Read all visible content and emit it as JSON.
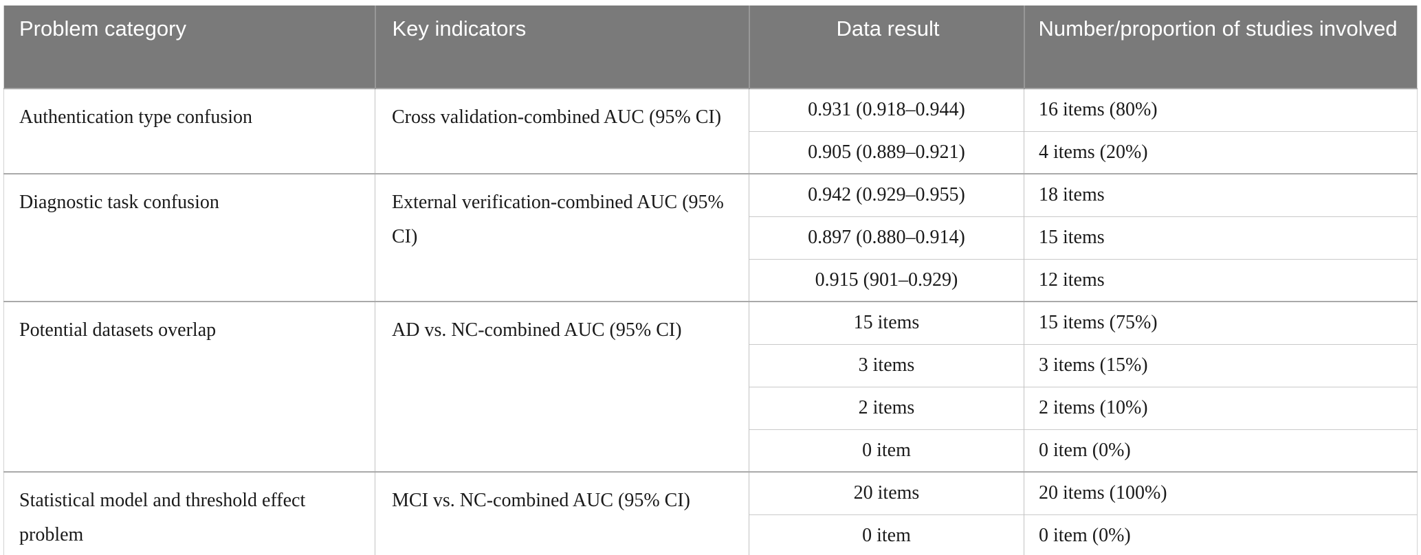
{
  "table": {
    "columns": [
      "Problem category",
      "Key indicators",
      "Data result",
      "Number/proportion of studies involved"
    ],
    "groups": [
      {
        "category": "Authentication type confusion",
        "indicator": "Cross validation-combined AUC (95% CI)",
        "rows": [
          {
            "result": "0.931 (0.918–0.944)",
            "studies": "16 items (80%)"
          },
          {
            "result": "0.905 (0.889–0.921)",
            "studies": "4 items (20%)"
          }
        ]
      },
      {
        "category": "Diagnostic task confusion",
        "indicator": "External verification-combined AUC (95% CI)",
        "rows": [
          {
            "result": "0.942 (0.929–0.955)",
            "studies": "18 items"
          },
          {
            "result": "0.897 (0.880–0.914)",
            "studies": "15 items"
          },
          {
            "result": "0.915 (901–0.929)",
            "studies": "12 items"
          }
        ]
      },
      {
        "category": "Potential datasets overlap",
        "indicator": "AD vs. NC-combined AUC (95% CI)",
        "rows": [
          {
            "result": "15 items",
            "studies": "15 items (75%)"
          },
          {
            "result": "3 items",
            "studies": "3 items (15%)"
          },
          {
            "result": "2 items",
            "studies": "2 items (10%)"
          },
          {
            "result": "0 item",
            "studies": "0 item (0%)"
          }
        ]
      },
      {
        "category": "Statistical model and threshold effect problem",
        "indicator": "MCI vs. NC-combined AUC (95% CI)",
        "rows": [
          {
            "result": "20 items",
            "studies": "20 items (100%)"
          },
          {
            "result": "0 item",
            "studies": "0 item (0%)"
          }
        ]
      }
    ],
    "colors": {
      "header_bg": "#7a7a7a",
      "header_text": "#ffffff",
      "body_text": "#1a1a1a",
      "group_divider": "#a9a9a9",
      "sub_divider": "#c9c9c9",
      "column_divider": "#c2c2c2"
    }
  }
}
